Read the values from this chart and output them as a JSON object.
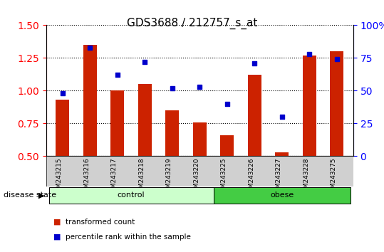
{
  "title": "GDS3688 / 212757_s_at",
  "samples": [
    "GSM243215",
    "GSM243216",
    "GSM243217",
    "GSM243218",
    "GSM243219",
    "GSM243220",
    "GSM243225",
    "GSM243226",
    "GSM243227",
    "GSM243228",
    "GSM243275"
  ],
  "transformed_count": [
    0.93,
    1.35,
    1.0,
    1.05,
    0.85,
    0.76,
    0.66,
    1.12,
    0.53,
    1.27,
    1.3
  ],
  "percentile_rank": [
    48,
    83,
    62,
    72,
    52,
    53,
    40,
    71,
    30,
    78,
    74
  ],
  "bar_color": "#cc2200",
  "dot_color": "#0000cc",
  "ylim_left": [
    0.5,
    1.5
  ],
  "ylim_right": [
    0,
    100
  ],
  "yticks_left": [
    0.5,
    0.75,
    1.0,
    1.25,
    1.5
  ],
  "yticks_right": [
    0,
    25,
    50,
    75,
    100
  ],
  "yticklabels_right": [
    "0",
    "25",
    "50",
    "75",
    "100%"
  ],
  "groups": [
    {
      "label": "control",
      "start": 0,
      "end": 5,
      "color": "#ccffcc"
    },
    {
      "label": "obese",
      "start": 6,
      "end": 10,
      "color": "#44cc44"
    }
  ],
  "group_label_prefix": "disease state",
  "legend_bar_label": "transformed count",
  "legend_dot_label": "percentile rank within the sample",
  "bar_width": 0.5,
  "grid_linestyle": "dotted",
  "background_color": "#ffffff",
  "plot_area_color": "#ffffff",
  "tick_area_color": "#d0d0d0"
}
